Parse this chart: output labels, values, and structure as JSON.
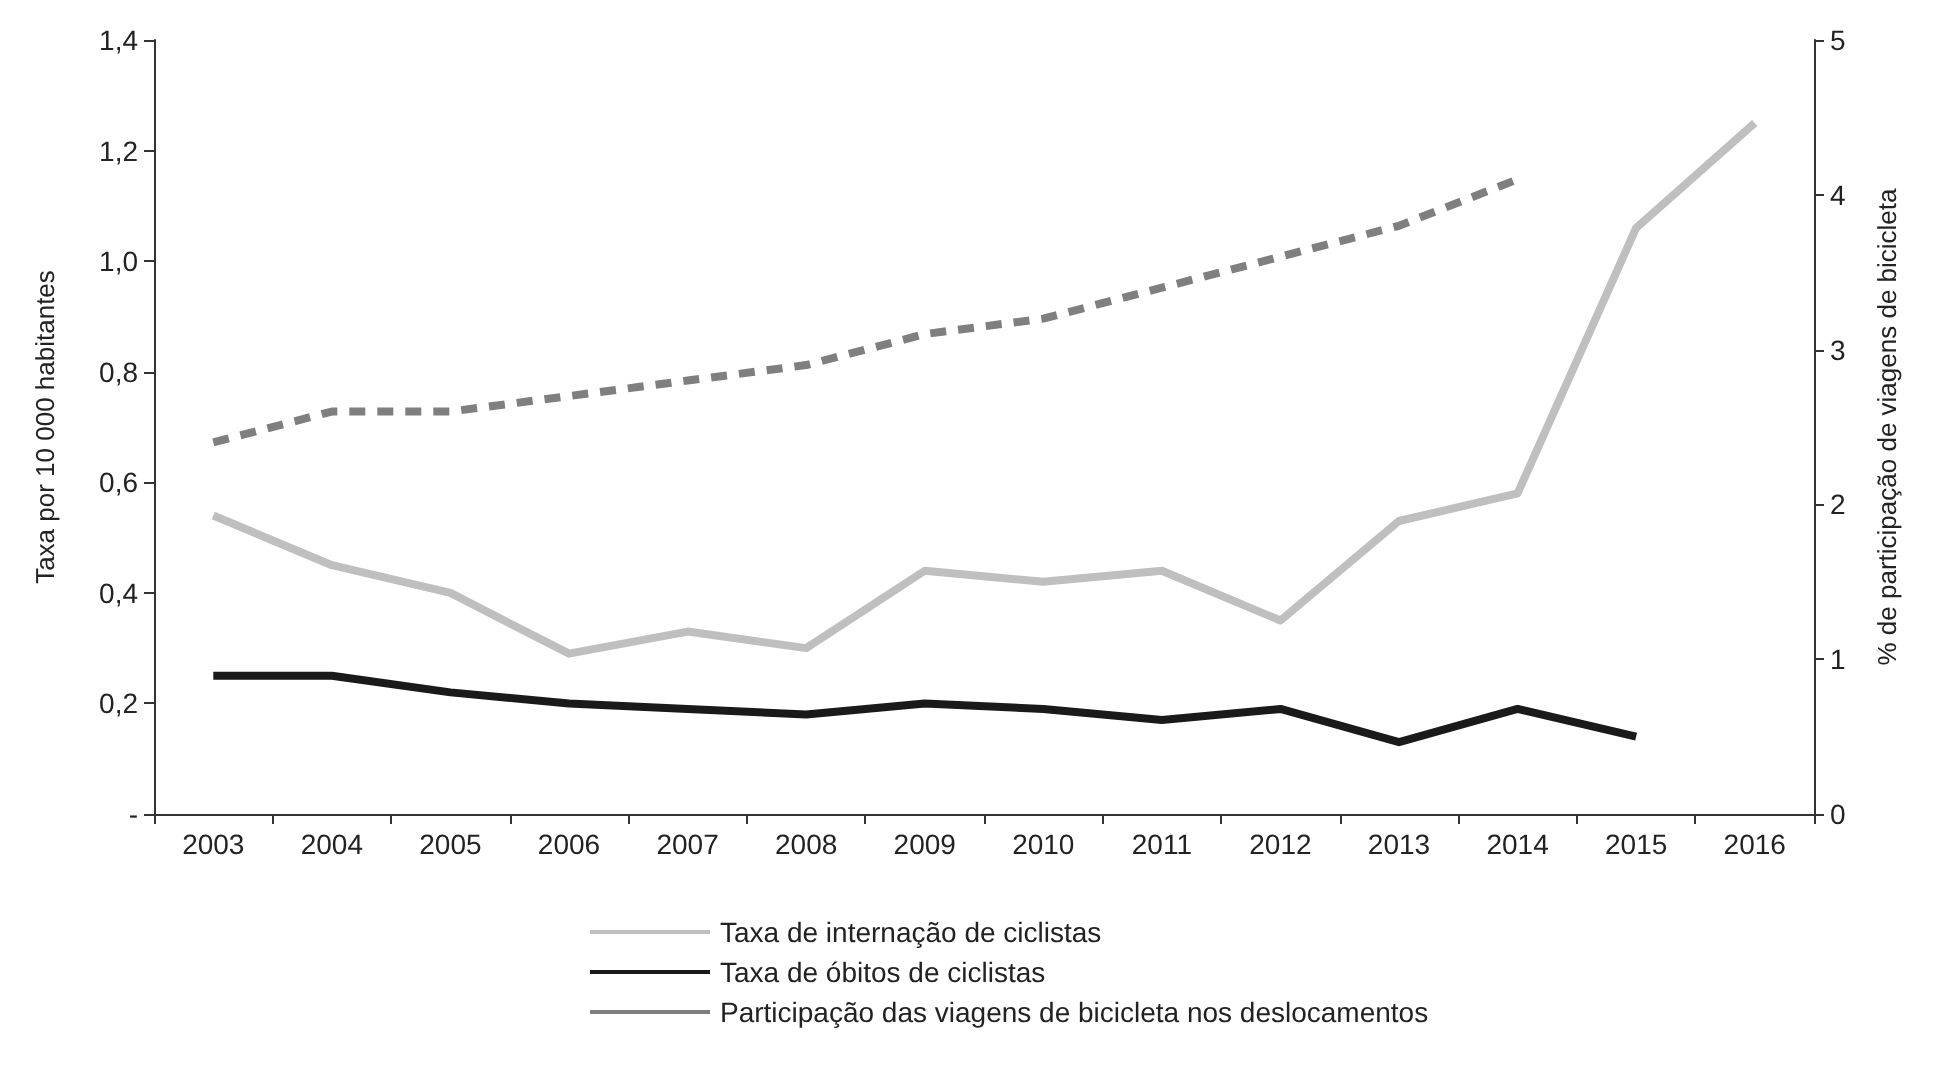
{
  "chart_data": {
    "type": "line",
    "ylabel": "Taxa por 10 000 habitantes",
    "y2label": "% de participação de viagens de bicicleta",
    "categories": [
      "2003",
      "2004",
      "2005",
      "2006",
      "2007",
      "2008",
      "2009",
      "2010",
      "2011",
      "2012",
      "2013",
      "2014",
      "2015",
      "2016"
    ],
    "series": [
      {
        "name": "Taxa de internação de ciclistas",
        "color": "#bfbfbf",
        "line_style": "solid",
        "values": [
          0.54,
          0.45,
          0.4,
          0.29,
          0.33,
          0.3,
          0.44,
          0.42,
          0.44,
          0.35,
          0.53,
          0.58,
          1.06,
          1.25
        ]
      },
      {
        "name": "Taxa de óbitos de ciclistas",
        "color": "#1a1a1a",
        "line_style": "solid",
        "values": [
          0.25,
          0.25,
          0.22,
          0.2,
          0.19,
          0.18,
          0.2,
          0.19,
          0.17,
          0.19,
          0.13,
          0.19,
          0.14,
          null
        ]
      },
      {
        "name": "Participação das viagens de bicicleta nos deslocamentos",
        "color": "#7f7f7f",
        "line_style": "dashed",
        "axis": "y2",
        "values": [
          2.4,
          2.6,
          2.6,
          2.7,
          2.8,
          2.9,
          3.1,
          3.2,
          3.4,
          3.6,
          3.8,
          4.1,
          null,
          null
        ]
      }
    ],
    "ylim": [
      0,
      1.4
    ],
    "yticks": [
      {
        "value": 0,
        "label": "-"
      },
      {
        "value": 0.2,
        "label": "0,2"
      },
      {
        "value": 0.4,
        "label": "0,4"
      },
      {
        "value": 0.6,
        "label": "0,6"
      },
      {
        "value": 0.8,
        "label": "0,8"
      },
      {
        "value": 1.0,
        "label": "1,0"
      },
      {
        "value": 1.2,
        "label": "1,2"
      },
      {
        "value": 1.4,
        "label": "1,4"
      }
    ],
    "y2lim": [
      0,
      5
    ],
    "y2ticks": [
      0,
      1,
      2,
      3,
      4,
      5
    ],
    "grid": false,
    "legend": "bottom",
    "marker": "none"
  }
}
